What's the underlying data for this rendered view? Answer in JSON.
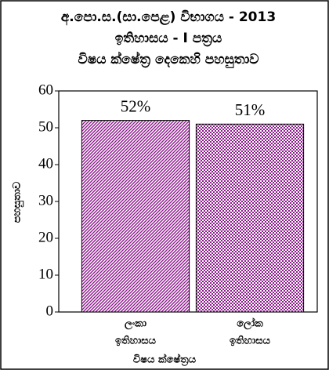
{
  "chart_data": {
    "type": "bar",
    "title": [
      "අ.පො.ස.(සා.පෙළ) විභාගය - 2013",
      "ඉතිහාසය - I පත්‍රය",
      "විෂය ක්ෂේත්‍ර දෙකෙහි පහසුතාව"
    ],
    "categories": [
      [
        "ලංකා",
        "ඉතිහාසය"
      ],
      [
        "ලෝක",
        "ඉතිහාසය"
      ]
    ],
    "values": [
      52,
      51
    ],
    "value_labels": [
      "52%",
      "51%"
    ],
    "colors": [
      "#8b1a8b",
      "#8b1a8b"
    ],
    "y_label": "පහසුතාව",
    "x_label": "විෂය ක්ෂේත්‍රය",
    "ylim": [
      0,
      60
    ],
    "yticks": [
      0,
      10,
      20,
      30,
      40,
      50,
      60
    ]
  }
}
